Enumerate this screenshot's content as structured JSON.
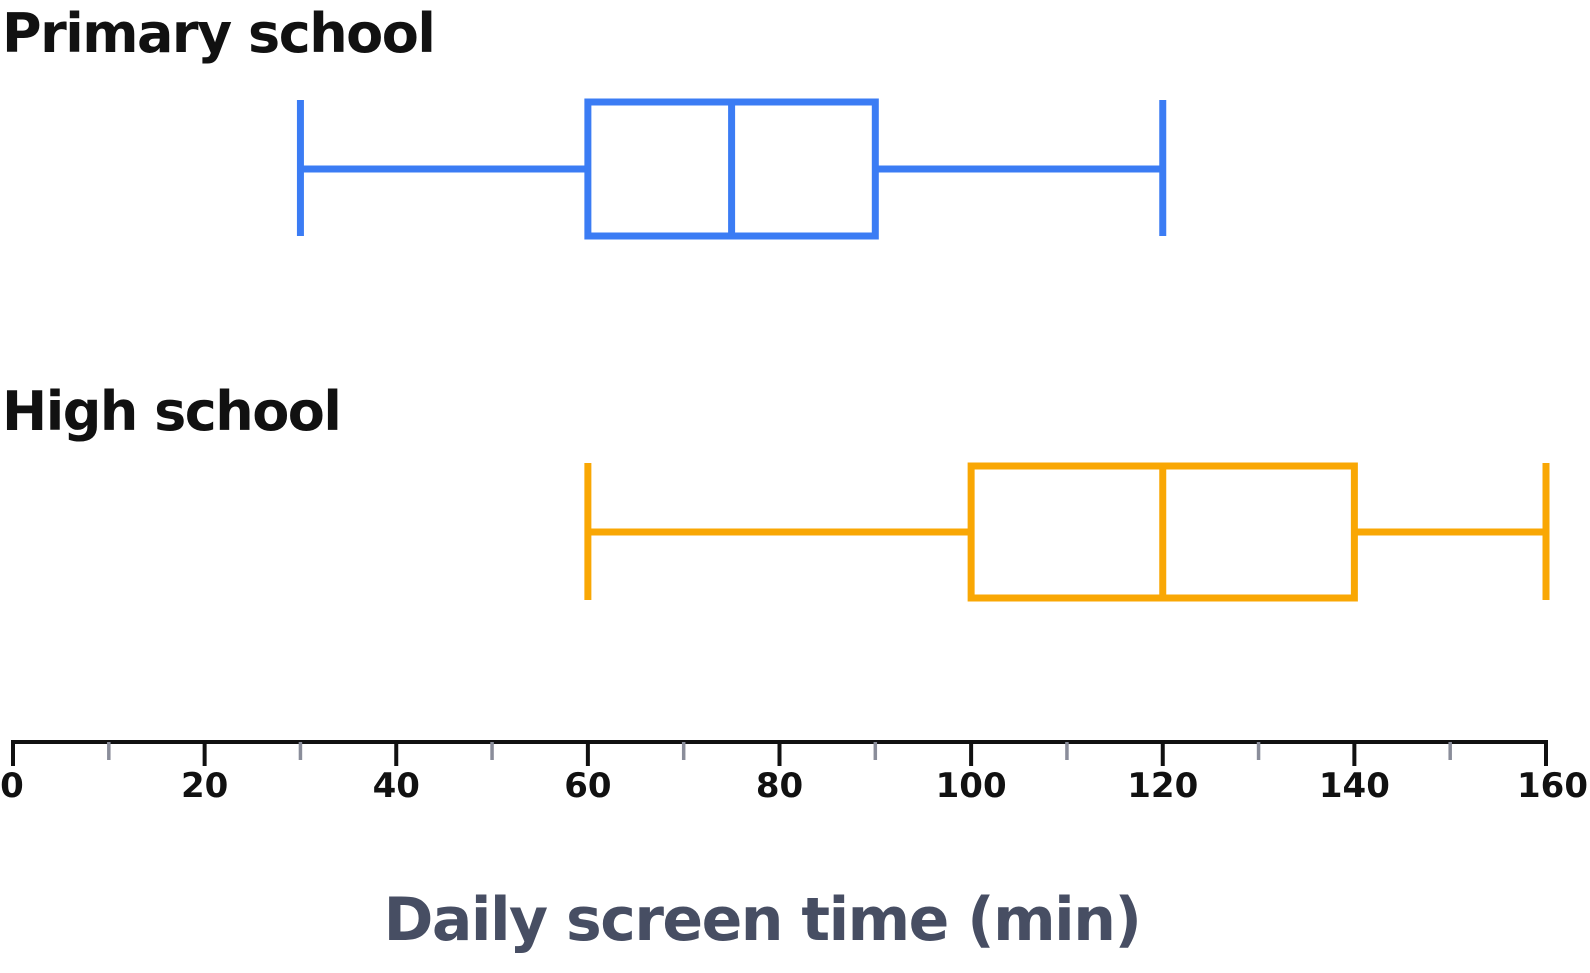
{
  "chart_data": {
    "type": "boxplot",
    "orientation": "horizontal",
    "xlabel": "Daily screen time (min)",
    "xlim": [
      0,
      160
    ],
    "major_ticks": [
      0,
      20,
      40,
      60,
      80,
      100,
      120,
      140,
      160
    ],
    "minor_ticks": [
      10,
      30,
      50,
      70,
      90,
      110,
      130,
      150
    ],
    "tick_labels": [
      "0",
      "20",
      "40",
      "60",
      "80",
      "100",
      "120",
      "140",
      "160"
    ],
    "series": [
      {
        "name": "Primary school",
        "min": 30,
        "q1": 60,
        "median": 75,
        "q3": 90,
        "max": 120,
        "color": "#3b7cf4"
      },
      {
        "name": "High school",
        "min": 60,
        "q1": 100,
        "median": 120,
        "q3": 140,
        "max": 160,
        "color": "#f9a704"
      }
    ],
    "axis_color": "#111111",
    "minor_tick_color": "#8a8d9a"
  }
}
